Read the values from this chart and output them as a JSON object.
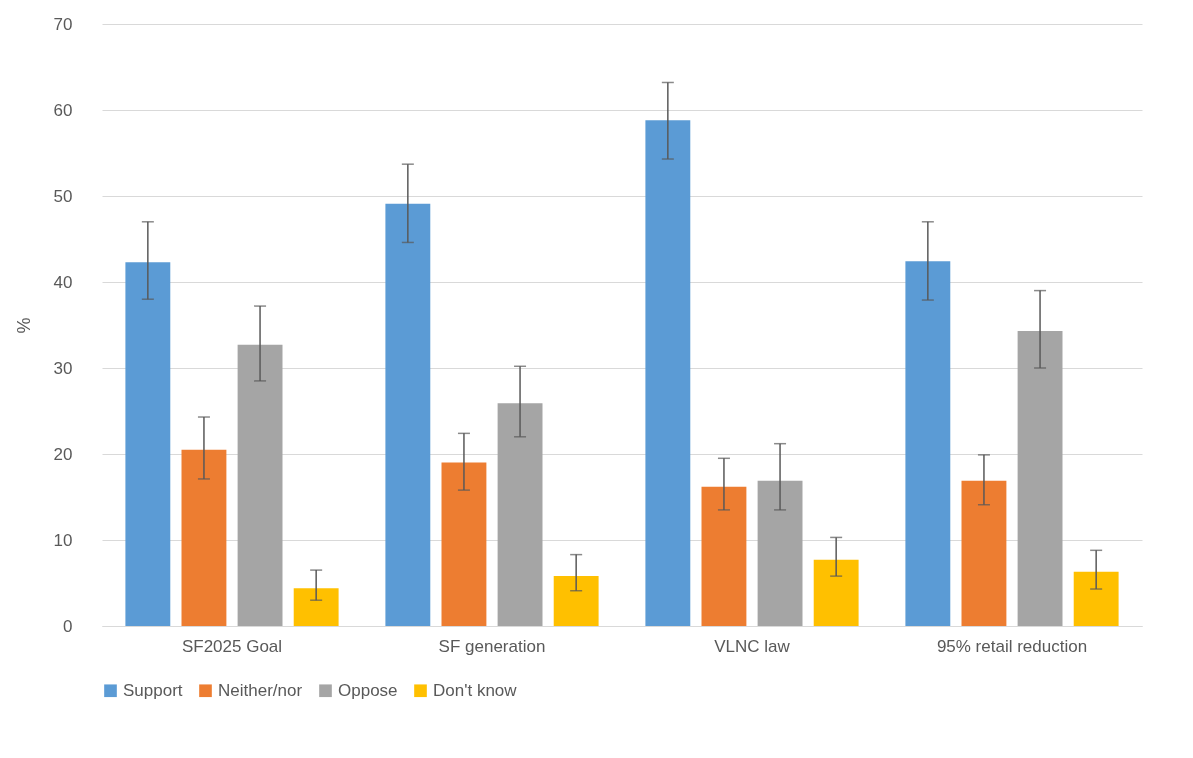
{
  "chart_data": {
    "type": "bar",
    "ylabel": "%",
    "categories": [
      "SF2025 Goal",
      "SF generation",
      "VLNC law",
      "95% retail reduction"
    ],
    "series": [
      {
        "name": "Support",
        "color": "#5b9bd5",
        "values": [
          42.3,
          49.1,
          58.8,
          42.4
        ],
        "errors": [
          [
            38.0,
            47.0
          ],
          [
            44.6,
            53.7
          ],
          [
            54.3,
            63.2
          ],
          [
            37.9,
            47.0
          ]
        ]
      },
      {
        "name": "Neither/nor",
        "color": "#ed7d31",
        "values": [
          20.5,
          19.0,
          16.2,
          16.9
        ],
        "errors": [
          [
            17.1,
            24.3
          ],
          [
            15.8,
            22.4
          ],
          [
            13.5,
            19.5
          ],
          [
            14.1,
            19.9
          ]
        ]
      },
      {
        "name": "Oppose",
        "color": "#a5a5a5",
        "values": [
          32.7,
          25.9,
          16.9,
          34.3
        ],
        "errors": [
          [
            28.5,
            37.2
          ],
          [
            22.0,
            30.2
          ],
          [
            13.5,
            21.2
          ],
          [
            30.0,
            39.0
          ]
        ]
      },
      {
        "name": "Don't know",
        "color": "#ffc000",
        "values": [
          4.4,
          5.8,
          7.7,
          6.3
        ],
        "errors": [
          [
            3.0,
            6.5
          ],
          [
            4.1,
            8.3
          ],
          [
            5.8,
            10.3
          ],
          [
            4.3,
            8.8
          ]
        ]
      }
    ],
    "ylim": [
      0,
      70
    ],
    "yticks": [
      0,
      10,
      20,
      30,
      40,
      50,
      60,
      70
    ],
    "grid": "y",
    "legend": "bottom"
  }
}
